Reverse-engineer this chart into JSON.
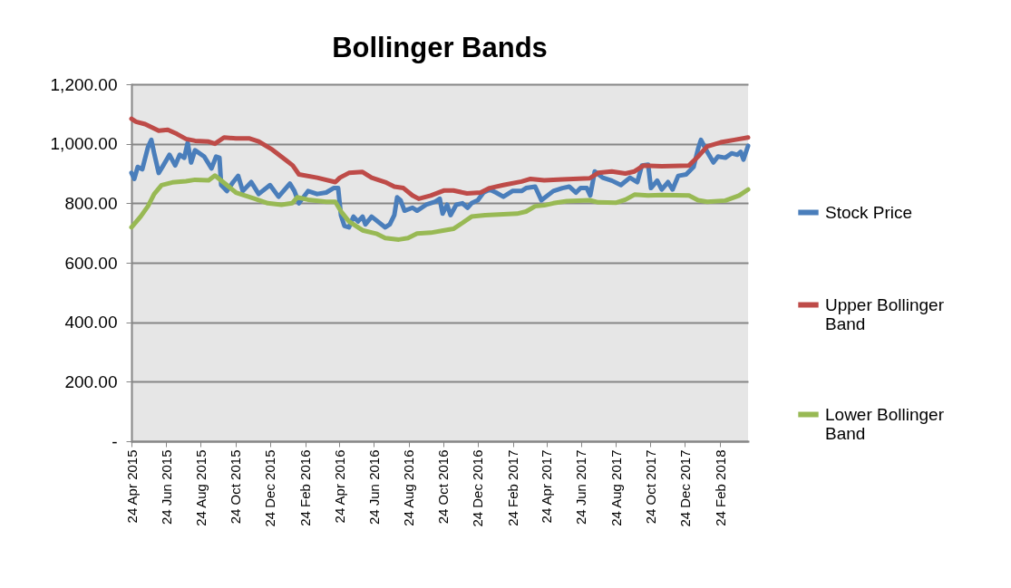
{
  "chart_data": {
    "type": "line",
    "title": "Bollinger Bands",
    "legend": "right",
    "grid": "y",
    "marker": "none",
    "line_style": "solid",
    "xlim": [
      "2015-04-24",
      "2018-04-14"
    ],
    "xticks": [
      {
        "value": "2015-04-24",
        "label": "24 Apr 2015"
      },
      {
        "value": "2015-06-24",
        "label": "24 Jun 2015"
      },
      {
        "value": "2015-08-24",
        "label": "24 Aug 2015"
      },
      {
        "value": "2015-10-24",
        "label": "24 Oct 2015"
      },
      {
        "value": "2015-12-24",
        "label": "24 Dec 2015"
      },
      {
        "value": "2016-02-24",
        "label": "24 Feb 2016"
      },
      {
        "value": "2016-04-24",
        "label": "24 Apr 2016"
      },
      {
        "value": "2016-06-24",
        "label": "24 Jun 2016"
      },
      {
        "value": "2016-08-24",
        "label": "24 Aug 2016"
      },
      {
        "value": "2016-10-24",
        "label": "24 Oct 2016"
      },
      {
        "value": "2016-12-24",
        "label": "24 Dec 2016"
      },
      {
        "value": "2017-02-24",
        "label": "24 Feb 2017"
      },
      {
        "value": "2017-04-24",
        "label": "24 Apr 2017"
      },
      {
        "value": "2017-06-24",
        "label": "24 Jun 2017"
      },
      {
        "value": "2017-08-24",
        "label": "24 Aug 2017"
      },
      {
        "value": "2017-10-24",
        "label": "24 Oct 2017"
      },
      {
        "value": "2017-12-24",
        "label": "24 Dec 2017"
      },
      {
        "value": "2018-02-24",
        "label": "24 Feb 2018"
      }
    ],
    "ylim": [
      0,
      1200
    ],
    "yticks": [
      {
        "value": 0,
        "label": "-"
      },
      {
        "value": 200,
        "label": "200.00"
      },
      {
        "value": 400,
        "label": "400.00"
      },
      {
        "value": 600,
        "label": "600.00"
      },
      {
        "value": 800,
        "label": "800.00"
      },
      {
        "value": 1000,
        "label": "1,000.00"
      },
      {
        "value": 1200,
        "label": "1,200.00"
      }
    ],
    "series": [
      {
        "name": "Stock Price",
        "color": "#4a7ebb",
        "x": [
          "2015-04-24",
          "2015-04-29",
          "2015-05-05",
          "2015-05-13",
          "2015-05-23",
          "2015-05-29",
          "2015-06-03",
          "2015-06-11",
          "2015-06-19",
          "2015-06-30",
          "2015-07-10",
          "2015-07-18",
          "2015-07-26",
          "2015-08-01",
          "2015-08-07",
          "2015-08-14",
          "2015-08-30",
          "2015-09-12",
          "2015-09-20",
          "2015-09-26",
          "2015-09-29",
          "2015-10-09",
          "2015-10-20",
          "2015-10-29",
          "2015-11-06",
          "2015-11-21",
          "2015-12-04",
          "2015-12-24",
          "2016-01-08",
          "2016-01-28",
          "2016-02-05",
          "2016-02-13",
          "2016-02-29",
          "2016-03-16",
          "2016-04-01",
          "2016-04-14",
          "2016-04-22",
          "2016-04-27",
          "2016-05-03",
          "2016-05-11",
          "2016-05-19",
          "2016-05-27",
          "2016-06-04",
          "2016-06-09",
          "2016-06-20",
          "2016-07-14",
          "2016-07-22",
          "2016-07-30",
          "2016-08-04",
          "2016-08-10",
          "2016-08-17",
          "2016-08-31",
          "2016-09-08",
          "2016-09-24",
          "2016-10-10",
          "2016-10-18",
          "2016-10-23",
          "2016-10-31",
          "2016-11-06",
          "2016-11-16",
          "2016-11-27",
          "2016-12-06",
          "2016-12-13",
          "2016-12-24",
          "2017-01-03",
          "2017-01-14",
          "2017-01-25",
          "2017-02-07",
          "2017-02-23",
          "2017-03-11",
          "2017-03-19",
          "2017-04-04",
          "2017-04-15",
          "2017-05-06",
          "2017-05-22",
          "2017-06-03",
          "2017-06-15",
          "2017-06-23",
          "2017-07-04",
          "2017-07-10",
          "2017-07-18",
          "2017-08-01",
          "2017-08-17",
          "2017-09-02",
          "2017-09-18",
          "2017-10-01",
          "2017-10-09",
          "2017-10-20",
          "2017-10-25",
          "2017-11-05",
          "2017-11-13",
          "2017-11-24",
          "2017-12-02",
          "2017-12-12",
          "2017-12-26",
          "2018-01-08",
          "2018-01-16",
          "2018-01-21",
          "2018-02-01",
          "2018-02-12",
          "2018-02-20",
          "2018-03-05",
          "2018-03-16",
          "2018-03-26",
          "2018-04-01",
          "2018-04-06",
          "2018-04-14"
        ],
        "values": [
          902,
          882,
          922,
          914,
          988,
          1013,
          968,
          902,
          927,
          963,
          927,
          963,
          953,
          1003,
          937,
          978,
          957,
          917,
          957,
          953,
          861,
          841,
          871,
          892,
          841,
          871,
          831,
          861,
          822,
          866,
          841,
          800,
          841,
          831,
          836,
          851,
          851,
          759,
          724,
          719,
          755,
          739,
          755,
          729,
          755,
          719,
          729,
          760,
          820,
          810,
          775,
          785,
          775,
          795,
          805,
          815,
          765,
          795,
          760,
          795,
          800,
          785,
          800,
          810,
          836,
          846,
          836,
          822,
          841,
          841,
          851,
          856,
          810,
          841,
          851,
          856,
          836,
          851,
          851,
          826,
          907,
          886,
          876,
          861,
          886,
          871,
          927,
          930,
          851,
          876,
          846,
          871,
          846,
          892,
          897,
          922,
          983,
          1013,
          973,
          937,
          957,
          953,
          968,
          963,
          973,
          947,
          993
        ]
      },
      {
        "name": "Upper Bollinger Band",
        "color": "#be4b48",
        "x": [
          "2015-04-24",
          "2015-05-02",
          "2015-05-18",
          "2015-06-11",
          "2015-06-27",
          "2015-07-13",
          "2015-07-29",
          "2015-08-14",
          "2015-09-07",
          "2015-09-18",
          "2015-10-04",
          "2015-10-25",
          "2015-11-18",
          "2015-12-04",
          "2015-12-28",
          "2016-01-21",
          "2016-02-02",
          "2016-02-13",
          "2016-03-16",
          "2016-04-17",
          "2016-04-25",
          "2016-05-11",
          "2016-06-04",
          "2016-06-20",
          "2016-07-14",
          "2016-07-30",
          "2016-08-15",
          "2016-08-31",
          "2016-09-11",
          "2016-10-02",
          "2016-10-26",
          "2016-11-11",
          "2016-12-05",
          "2016-12-29",
          "2017-01-14",
          "2017-02-07",
          "2017-03-11",
          "2017-03-27",
          "2017-04-20",
          "2017-05-22",
          "2017-07-09",
          "2017-07-24",
          "2017-08-17",
          "2017-09-10",
          "2017-09-26",
          "2017-10-12",
          "2017-11-13",
          "2017-12-31",
          "2018-01-16",
          "2018-02-01",
          "2018-02-25",
          "2018-03-21",
          "2018-04-14"
        ],
        "values": [
          1084,
          1074,
          1066,
          1044,
          1047,
          1033,
          1016,
          1010,
          1007,
          1000,
          1021,
          1018,
          1018,
          1008,
          980,
          945,
          927,
          897,
          886,
          871,
          886,
          902,
          905,
          886,
          871,
          856,
          851,
          826,
          815,
          826,
          843,
          843,
          833,
          836,
          851,
          861,
          873,
          882,
          877,
          880,
          884,
          902,
          907,
          900,
          907,
          927,
          924,
          927,
          957,
          991,
          1005,
          1013,
          1021
        ]
      },
      {
        "name": "Lower Bollinger Band",
        "color": "#98b954",
        "x": [
          "2015-04-24",
          "2015-05-10",
          "2015-05-23",
          "2015-06-03",
          "2015-06-16",
          "2015-07-05",
          "2015-07-29",
          "2015-08-14",
          "2015-09-07",
          "2015-09-18",
          "2015-10-09",
          "2015-10-25",
          "2015-11-26",
          "2015-12-20",
          "2016-01-13",
          "2016-02-01",
          "2016-02-10",
          "2016-02-29",
          "2016-04-01",
          "2016-04-17",
          "2016-04-28",
          "2016-05-11",
          "2016-06-04",
          "2016-06-28",
          "2016-07-14",
          "2016-08-07",
          "2016-08-23",
          "2016-09-08",
          "2016-10-02",
          "2016-10-26",
          "2016-11-11",
          "2016-11-27",
          "2016-12-13",
          "2017-01-06",
          "2017-01-30",
          "2017-03-03",
          "2017-03-19",
          "2017-04-04",
          "2017-04-20",
          "2017-05-06",
          "2017-05-30",
          "2017-07-09",
          "2017-07-24",
          "2017-08-25",
          "2017-09-10",
          "2017-09-26",
          "2017-10-20",
          "2017-11-13",
          "2017-12-31",
          "2018-01-16",
          "2018-02-01",
          "2018-03-05",
          "2018-03-29",
          "2018-04-14"
        ],
        "values": [
          719,
          755,
          790,
          831,
          861,
          870,
          874,
          879,
          877,
          893,
          861,
          836,
          816,
          800,
          795,
          800,
          820,
          812,
          805,
          805,
          770,
          739,
          709,
          698,
          683,
          678,
          683,
          698,
          701,
          709,
          714,
          734,
          755,
          760,
          762,
          765,
          772,
          790,
          793,
          800,
          807,
          810,
          803,
          802,
          812,
          829,
          826,
          828,
          826,
          810,
          805,
          809,
          826,
          846
        ]
      }
    ]
  }
}
